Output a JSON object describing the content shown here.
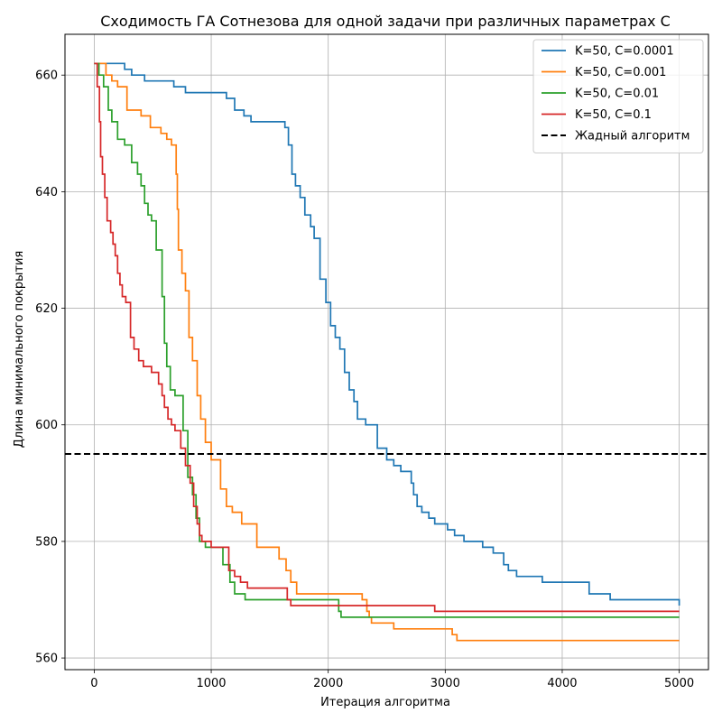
{
  "chart_data": {
    "type": "line",
    "title": "Сходимость ГА Сотнезова для одной задачи при различных параметрах С",
    "xlabel": "Итерация алгоритма",
    "ylabel": "Длина минимального покрытия",
    "xlim": [
      -250,
      5250
    ],
    "ylim": [
      558,
      667
    ],
    "xticks": [
      0,
      1000,
      2000,
      3000,
      4000,
      5000
    ],
    "yticks": [
      560,
      580,
      600,
      620,
      640,
      660
    ],
    "grid": true,
    "legend_position": "top-right",
    "series": [
      {
        "name": "K=50, C=0.0001",
        "color": "#1f77b4",
        "style": "step",
        "x": [
          0,
          260,
          320,
          430,
          680,
          780,
          1130,
          1200,
          1280,
          1340,
          1630,
          1660,
          1690,
          1720,
          1760,
          1800,
          1850,
          1880,
          1930,
          1980,
          2020,
          2060,
          2100,
          2140,
          2180,
          2220,
          2250,
          2320,
          2420,
          2500,
          2560,
          2620,
          2710,
          2730,
          2760,
          2800,
          2860,
          2910,
          3020,
          3080,
          3160,
          3320,
          3410,
          3500,
          3540,
          3610,
          3830,
          4230,
          4410,
          4900,
          5000
        ],
        "y": [
          662,
          661,
          660,
          659,
          658,
          657,
          656,
          654,
          653,
          652,
          651,
          648,
          643,
          641,
          639,
          636,
          634,
          632,
          625,
          621,
          617,
          615,
          613,
          609,
          606,
          604,
          601,
          600,
          596,
          594,
          593,
          592,
          590,
          588,
          586,
          585,
          584,
          583,
          582,
          581,
          580,
          579,
          578,
          576,
          575,
          574,
          573,
          571,
          570,
          570,
          569
        ]
      },
      {
        "name": "K=50, C=0.001",
        "color": "#ff7f0e",
        "style": "step",
        "x": [
          0,
          100,
          150,
          200,
          280,
          400,
          480,
          570,
          620,
          660,
          700,
          710,
          720,
          750,
          780,
          810,
          840,
          880,
          910,
          950,
          1000,
          1080,
          1130,
          1180,
          1260,
          1390,
          1580,
          1640,
          1680,
          1730,
          2290,
          2330,
          2350,
          2370,
          2560,
          2580,
          3060,
          3100,
          5000
        ],
        "y": [
          662,
          660,
          659,
          658,
          654,
          653,
          651,
          650,
          649,
          648,
          643,
          637,
          630,
          626,
          623,
          615,
          611,
          605,
          601,
          597,
          594,
          589,
          586,
          585,
          583,
          579,
          577,
          575,
          573,
          571,
          570,
          568,
          567,
          566,
          565,
          565,
          564,
          563,
          563
        ]
      },
      {
        "name": "K=50, C=0.01",
        "color": "#2ca02c",
        "style": "step",
        "x": [
          0,
          40,
          80,
          120,
          150,
          200,
          260,
          320,
          370,
          400,
          430,
          460,
          490,
          530,
          580,
          600,
          620,
          650,
          690,
          760,
          800,
          840,
          870,
          900,
          950,
          1100,
          1160,
          1200,
          1290,
          2090,
          2110,
          2130,
          5000
        ],
        "y": [
          662,
          660,
          658,
          654,
          652,
          649,
          648,
          645,
          643,
          641,
          638,
          636,
          635,
          630,
          622,
          614,
          610,
          606,
          605,
          599,
          591,
          588,
          584,
          580,
          579,
          576,
          573,
          571,
          570,
          568,
          567,
          567,
          567
        ]
      },
      {
        "name": "K=50, C=0.1",
        "color": "#d62728",
        "style": "step",
        "x": [
          0,
          25,
          45,
          55,
          70,
          90,
          110,
          140,
          160,
          180,
          200,
          220,
          240,
          270,
          310,
          340,
          380,
          420,
          490,
          550,
          580,
          600,
          630,
          660,
          690,
          740,
          780,
          820,
          850,
          880,
          900,
          920,
          1000,
          1150,
          1200,
          1250,
          1310,
          1650,
          1680,
          2910,
          2930,
          5000
        ],
        "y": [
          662,
          658,
          652,
          646,
          643,
          639,
          635,
          633,
          631,
          629,
          626,
          624,
          622,
          621,
          615,
          613,
          611,
          610,
          609,
          607,
          605,
          603,
          601,
          600,
          599,
          596,
          593,
          590,
          586,
          583,
          581,
          580,
          579,
          575,
          574,
          573,
          572,
          570,
          569,
          568,
          568,
          568
        ]
      },
      {
        "name": "Жадный алгоритм",
        "color": "#000000",
        "style": "dashed-hline",
        "y": 595
      }
    ]
  }
}
